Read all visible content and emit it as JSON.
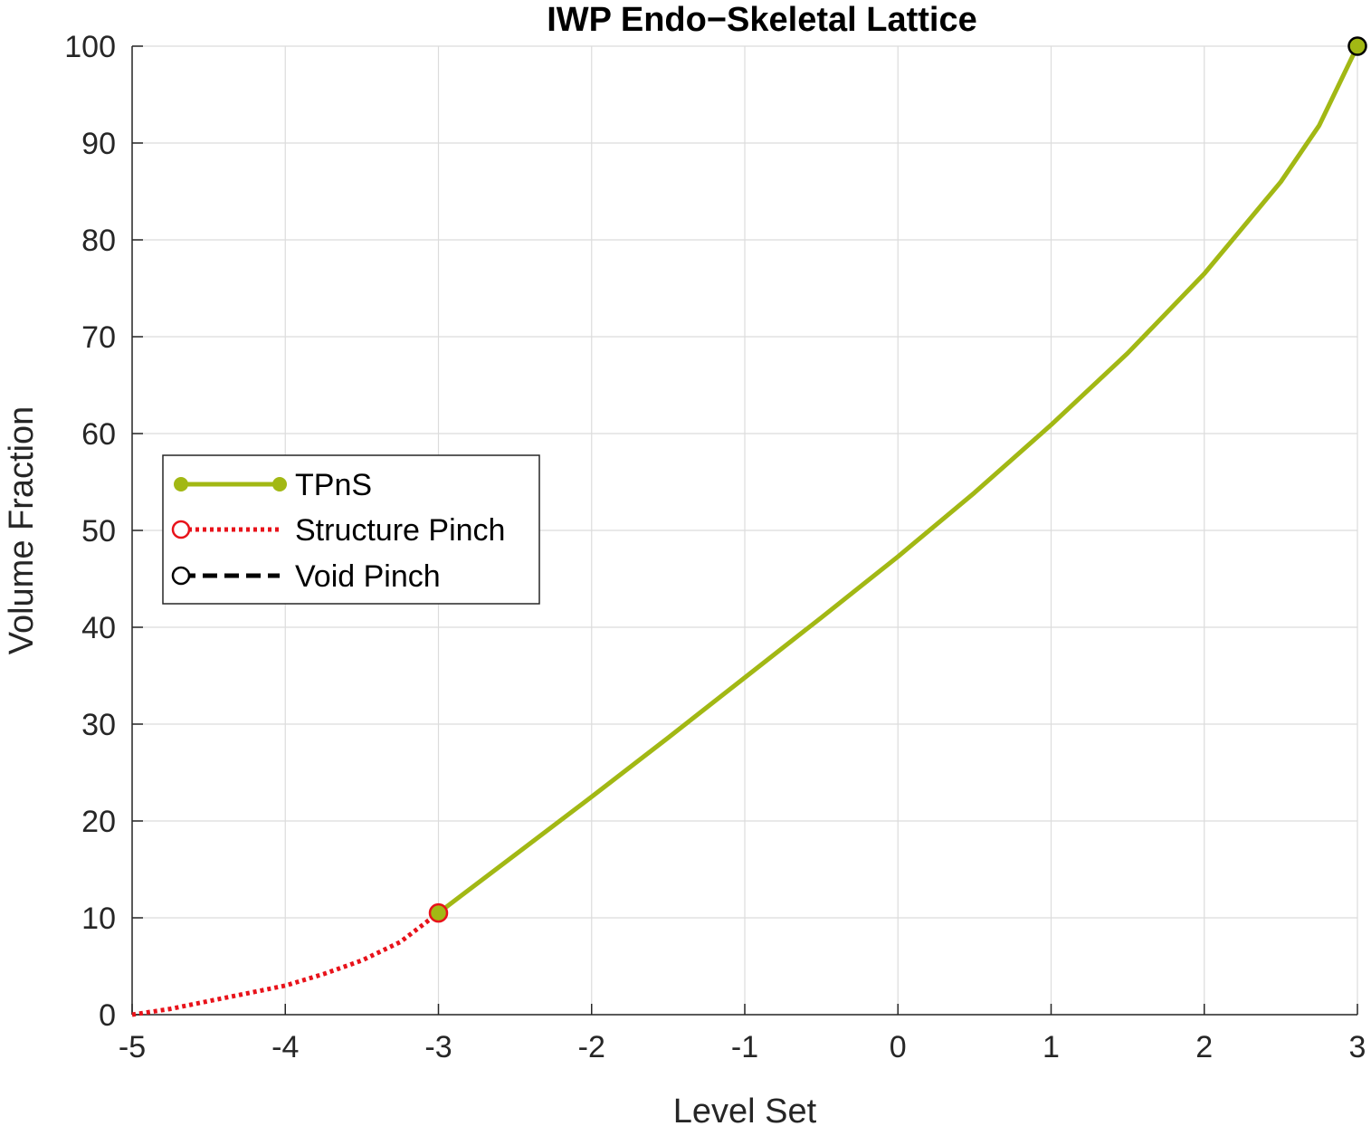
{
  "chart_data": {
    "type": "line",
    "title": "IWP Endo−Skeletal Lattice",
    "xlabel": "Level Set",
    "ylabel": "Volume Fraction",
    "xlim": [
      -5,
      3
    ],
    "ylim": [
      0,
      100
    ],
    "xticks": [
      -5,
      -4,
      -3,
      -2,
      -1,
      0,
      1,
      2,
      3
    ],
    "yticks": [
      0,
      10,
      20,
      30,
      40,
      50,
      60,
      70,
      80,
      90,
      100
    ],
    "xtick_labels": [
      "-5",
      "-4",
      "-3",
      "-2",
      "-1",
      "0",
      "1",
      "2",
      "3"
    ],
    "ytick_labels": [
      "0",
      "10",
      "20",
      "30",
      "40",
      "50",
      "60",
      "70",
      "80",
      "90",
      "100"
    ],
    "grid": true,
    "legend_position": "center-left",
    "series": [
      {
        "name": "TPnS",
        "color": "#a2b814",
        "style": "solid",
        "marker": "filled-circle",
        "x": [
          -3,
          -2.5,
          -2,
          -1.5,
          -1,
          -0.5,
          0,
          0.5,
          1,
          1.5,
          2,
          2.5,
          2.75,
          3
        ],
        "y": [
          10.5,
          16.5,
          22.5,
          28.6,
          34.8,
          41,
          47.3,
          53.9,
          60.9,
          68.3,
          76.5,
          86,
          91.8,
          100
        ],
        "endpoints": [
          {
            "x": -3,
            "y": 10.5,
            "edge": "#e8121a"
          },
          {
            "x": 3,
            "y": 100,
            "edge": "#000000"
          }
        ]
      },
      {
        "name": "Structure Pinch",
        "color": "#e8121a",
        "style": "dotted",
        "marker": "open-circle",
        "x": [
          -5,
          -4.75,
          -4.5,
          -4.25,
          -4,
          -3.75,
          -3.5,
          -3.25,
          -3
        ],
        "y": [
          0,
          0.6,
          1.4,
          2.2,
          3.0,
          4.2,
          5.6,
          7.5,
          10.5
        ]
      },
      {
        "name": "Void Pinch",
        "color": "#000000",
        "style": "dashed",
        "marker": "open-circle",
        "x": [],
        "y": []
      }
    ]
  }
}
